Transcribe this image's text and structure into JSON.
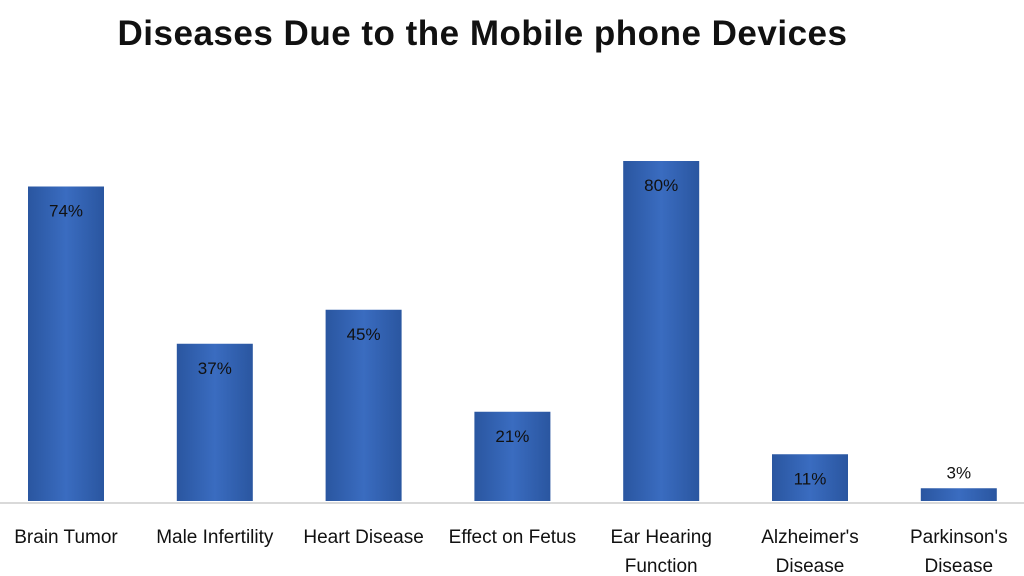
{
  "chart_data": {
    "type": "bar",
    "title": "Diseases Due to the Mobile phone Devices",
    "xlabel": "",
    "ylabel": "",
    "ylim": [
      0,
      80
    ],
    "grid": false,
    "categories": [
      [
        "Brain Tumor"
      ],
      [
        "Male Infertility"
      ],
      [
        "Heart Disease"
      ],
      [
        "Effect on Fetus"
      ],
      [
        "Ear Hearing",
        "Function"
      ],
      [
        "Alzheimer's",
        "Disease"
      ],
      [
        "Parkinson's",
        "Disease"
      ]
    ],
    "values": [
      74,
      37,
      45,
      21,
      80,
      11,
      3
    ],
    "data_labels": [
      "74%",
      "37%",
      "45%",
      "21%",
      "80%",
      "11%",
      "3%"
    ],
    "colors": {
      "bar": "#2f5ea8",
      "bar_light": "#4a7cc8",
      "axis": "#d9d9d9"
    }
  }
}
